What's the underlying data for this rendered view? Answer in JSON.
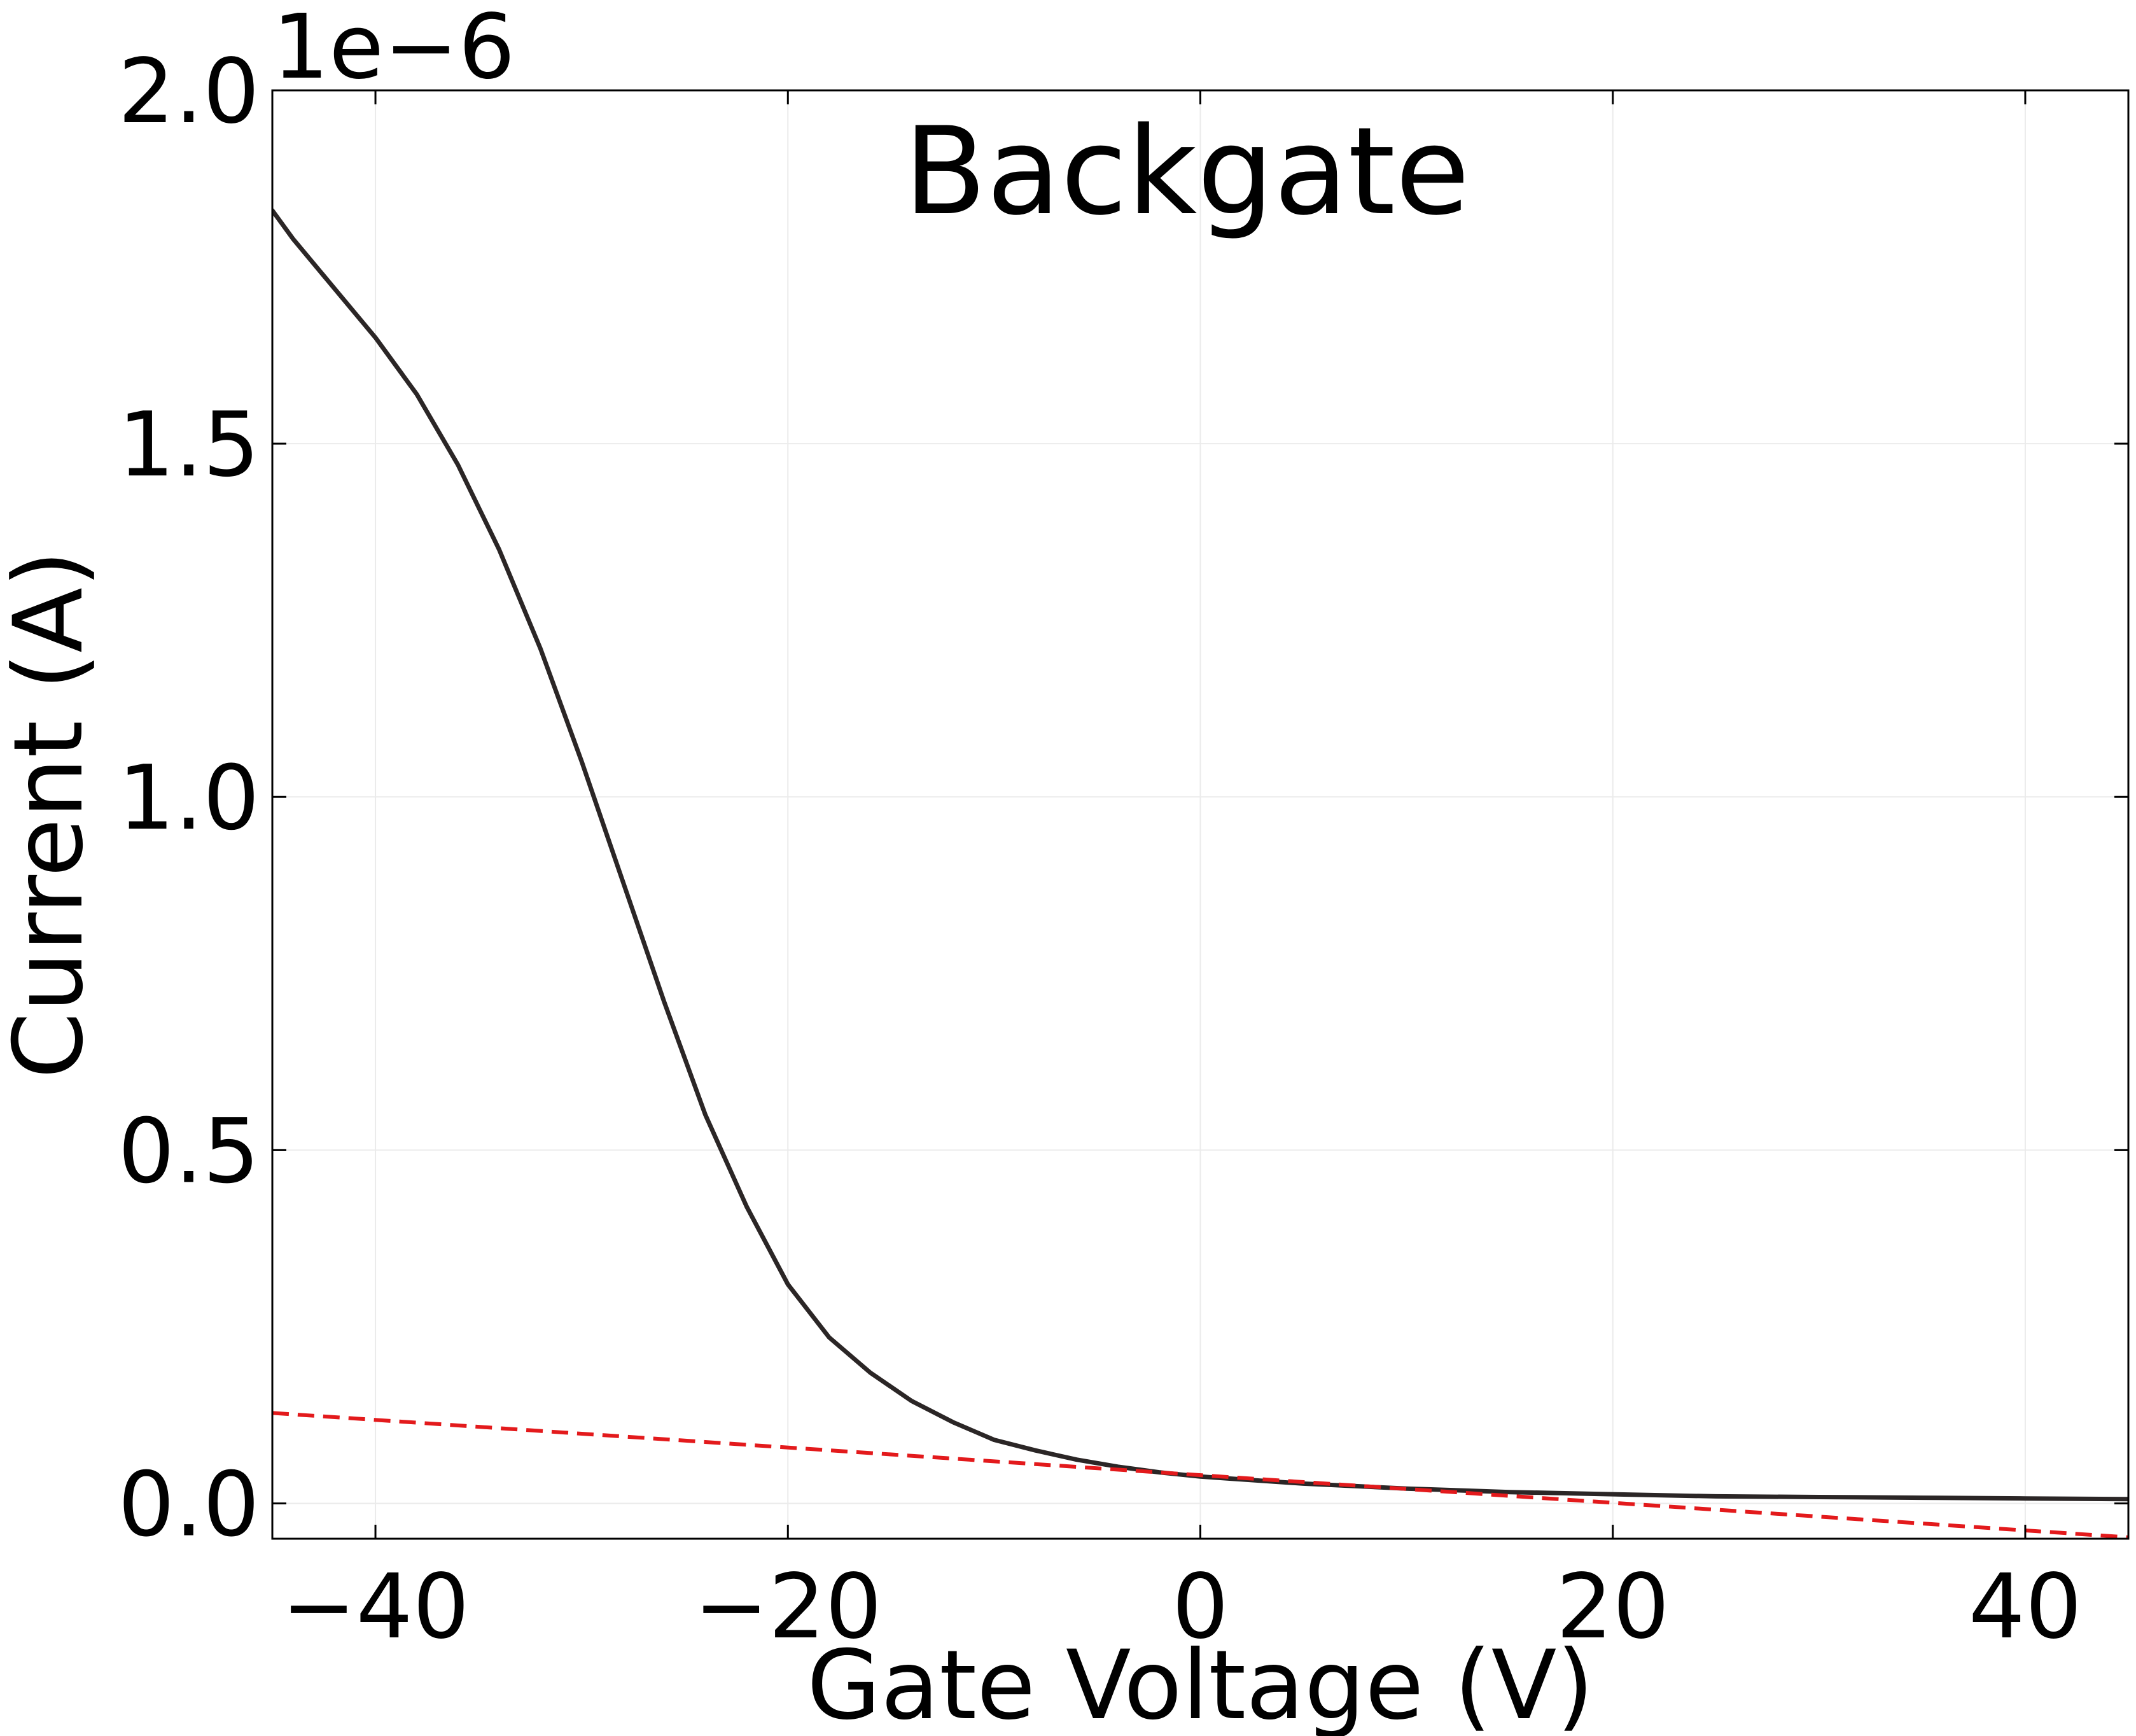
{
  "chart_data": {
    "type": "line",
    "title": "Backgate",
    "xlabel": "Gate Voltage (V)",
    "ylabel": "Current (A)",
    "y_offset_label": "1e−6",
    "y_scale": 1e-06,
    "xlim": [
      -45,
      45
    ],
    "ylim": [
      -0.05,
      2.0
    ],
    "grid": true,
    "x_ticks": [
      -40,
      -20,
      0,
      20,
      40
    ],
    "x_tick_labels": [
      "−40",
      "−20",
      "0",
      "20",
      "40"
    ],
    "y_ticks": [
      0.0,
      0.5,
      1.0,
      1.5,
      2.0
    ],
    "y_tick_labels": [
      "0.0",
      "0.5",
      "1.0",
      "1.5",
      "2.0"
    ],
    "series": [
      {
        "style": "solid",
        "color": "#2b2626",
        "x": [
          -45,
          -44,
          -42,
          -40,
          -38,
          -36,
          -34,
          -32,
          -30,
          -28,
          -26,
          -24,
          -22,
          -20,
          -18,
          -16,
          -14,
          -12,
          -10,
          -8,
          -6,
          -4,
          -2,
          0,
          5,
          10,
          15,
          20,
          25,
          30,
          35,
          40,
          45
        ],
        "y": [
          1.83,
          1.79,
          1.72,
          1.65,
          1.57,
          1.47,
          1.35,
          1.21,
          1.05,
          0.88,
          0.71,
          0.55,
          0.42,
          0.31,
          0.235,
          0.185,
          0.145,
          0.115,
          0.09,
          0.075,
          0.062,
          0.052,
          0.044,
          0.038,
          0.028,
          0.021,
          0.016,
          0.013,
          0.01,
          0.009,
          0.008,
          0.007,
          0.006
        ]
      },
      {
        "style": "dashed",
        "color": "#e31a1c",
        "x": [
          -45,
          45
        ],
        "y": [
          0.128,
          -0.048
        ]
      }
    ]
  }
}
